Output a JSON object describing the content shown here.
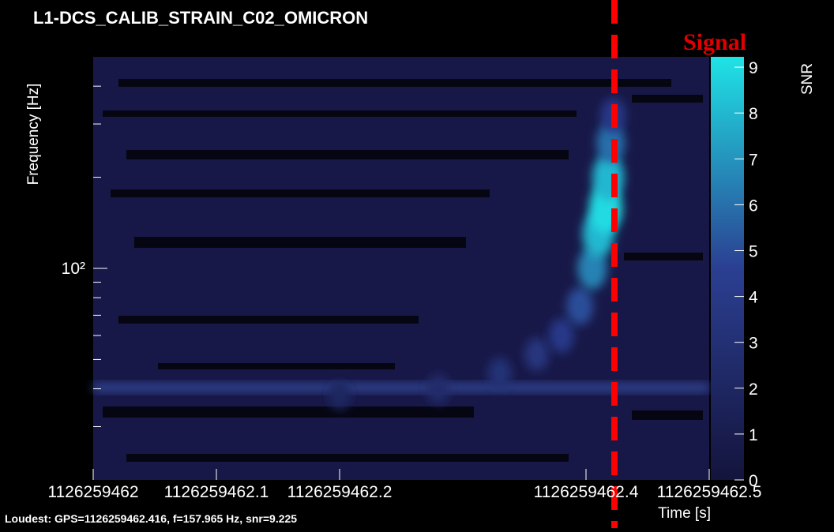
{
  "chart_data": {
    "type": "spectrogram",
    "title": "L1-DCS_CALIB_STRAIN_C02_OMICRON",
    "xlabel": "Time [s]",
    "ylabel": "Frequency [Hz]",
    "zlabel": "SNR",
    "annotation": "Signal",
    "footer": "Loudest: GPS=1126259462.416, f=157.965 Hz, snr=9.225",
    "xlim": [
      1126259462,
      1126259462.5
    ],
    "xticks": [
      1126259462,
      1126259462.1,
      1126259462.2,
      1126259462.4,
      1126259462.5
    ],
    "ylim": [
      20,
      500
    ],
    "log_y": true,
    "yticks": [
      {
        "value": 100,
        "label": "10²"
      }
    ],
    "yminorticks": [
      30,
      40,
      50,
      60,
      70,
      80,
      90,
      200,
      300,
      400
    ],
    "zlim": [
      0,
      9.225
    ],
    "zticks": [
      0,
      1,
      2,
      3,
      4,
      5,
      6,
      7,
      8,
      9
    ],
    "colorscale": [
      "#14143c",
      "#2b3f92",
      "#1fe3e6"
    ],
    "x": [
      1126259462.2,
      1126259462.28,
      1126259462.33,
      1126259462.36,
      1126259462.38,
      1126259462.395,
      1126259462.405,
      1126259462.41,
      1126259462.416,
      1126259462.418,
      1126259462.42,
      1126259462.422
    ],
    "y": [
      38,
      40,
      45,
      52,
      60,
      75,
      100,
      130,
      158,
      200,
      260,
      320
    ],
    "snr": [
      2,
      2.5,
      3,
      3.5,
      4,
      5,
      6.5,
      8,
      9,
      8,
      6,
      4
    ]
  }
}
